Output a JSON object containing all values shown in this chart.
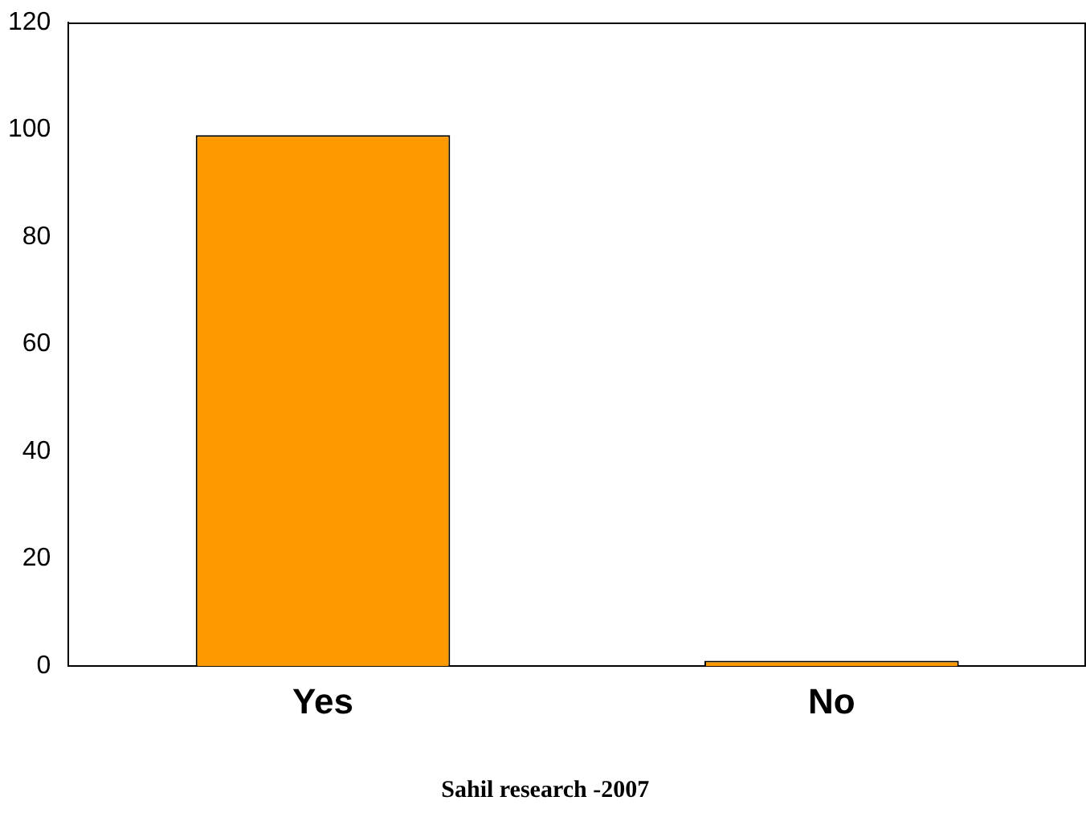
{
  "chart_data": {
    "type": "bar",
    "categories": [
      "Yes",
      "No"
    ],
    "values": [
      99,
      1
    ],
    "color": "#ff9900",
    "ylim": [
      0,
      120
    ],
    "yticks": [
      0,
      20,
      40,
      60,
      80,
      100,
      120
    ],
    "grid": false,
    "legend": false,
    "annotations": [
      "Sahil research -2007"
    ]
  }
}
